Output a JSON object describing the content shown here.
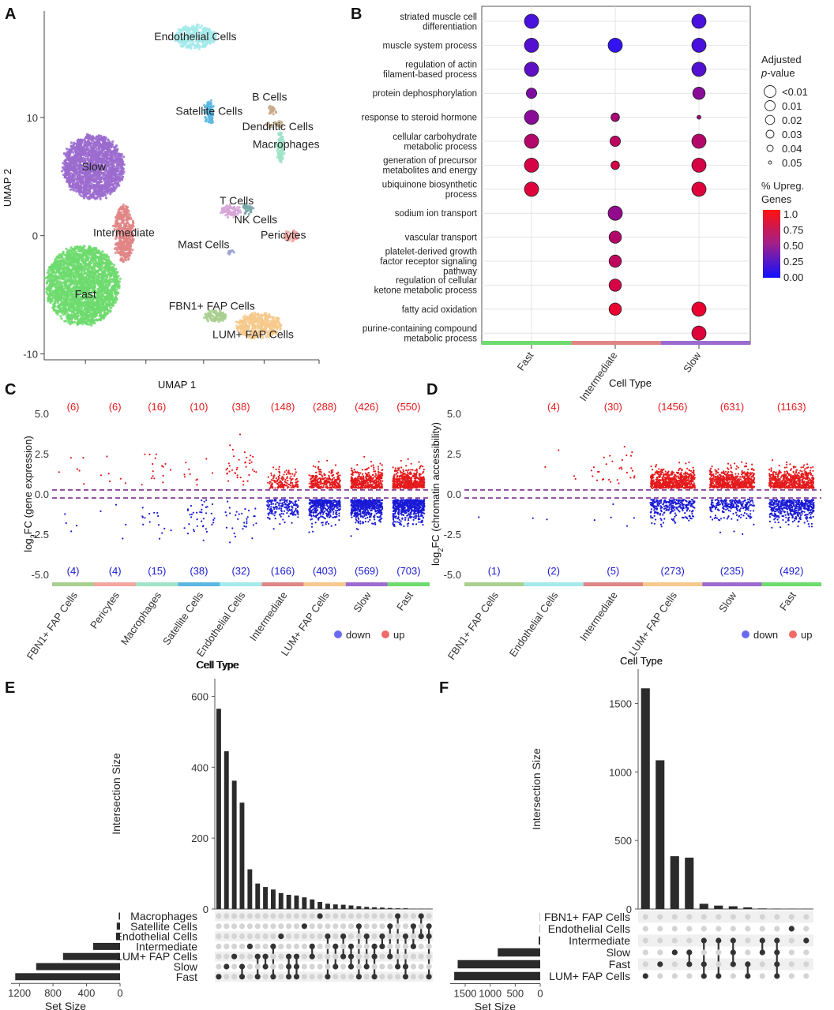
{
  "panels": {
    "a": "A",
    "b": "B",
    "c": "C",
    "d": "D",
    "e": "E",
    "f": "F"
  },
  "colors": {
    "up": "#e41a1c",
    "down": "#1a1ad6",
    "dashed": "#7b2d8e",
    "bar": "#2b2b2b",
    "celltypes": {
      "FBN1+ FAP Cells": "#a8cf8e",
      "Pericytes": "#f4a6a1",
      "Macrophages": "#9fe3c8",
      "Satellite Cells": "#5ab7e2",
      "Endothelial Cells": "#a3eaea",
      "Intermediate": "#e08585",
      "LUM+ FAP Cells": "#f6c98b",
      "Slow": "#9b6bcf",
      "Fast": "#6ddb6d",
      "B Cells": "#c9a88c",
      "Dendritic Cells": "#c5b28f",
      "T Cells": "#d6a5d6",
      "NK Cells": "#7aa8a8",
      "Mast Cells": "#9aa0cf"
    }
  },
  "chart_data": [
    {
      "id": "A",
      "type": "scatter",
      "xlabel": "UMAP 1",
      "ylabel": "UMAP 2",
      "yticks": [
        10,
        0,
        -10
      ],
      "ylim": [
        -10.5,
        19
      ],
      "clusters": [
        {
          "name": "Endothelial Cells",
          "x": 0.55,
          "y": 16.8
        },
        {
          "name": "B Cells",
          "x": 0.82,
          "y": 11.7
        },
        {
          "name": "Satellite Cells",
          "x": 0.6,
          "y": 10.5
        },
        {
          "name": "Dendritic Cells",
          "x": 0.85,
          "y": 9.2
        },
        {
          "name": "Macrophages",
          "x": 0.88,
          "y": 7.7
        },
        {
          "name": "Slow",
          "x": 0.18,
          "y": 5.8
        },
        {
          "name": "T Cells",
          "x": 0.7,
          "y": 2.9
        },
        {
          "name": "NK Cells",
          "x": 0.77,
          "y": 1.3
        },
        {
          "name": "Intermediate",
          "x": 0.29,
          "y": 0.2
        },
        {
          "name": "Pericytes",
          "x": 0.87,
          "y": 0.0
        },
        {
          "name": "Mast Cells",
          "x": 0.58,
          "y": -0.8
        },
        {
          "name": "Fast",
          "x": 0.15,
          "y": -5.0
        },
        {
          "name": "FBN1+ FAP Cells",
          "x": 0.61,
          "y": -6.0
        },
        {
          "name": "LUM+ FAP Cells",
          "x": 0.76,
          "y": -8.4
        }
      ]
    },
    {
      "id": "B",
      "type": "scatter",
      "xlabel": "Cell Type",
      "x_categories": [
        "Fast",
        "Intermediate",
        "Slow"
      ],
      "terms": [
        "striated muscle cell differentiation",
        "muscle system process",
        "regulation of actin filament-based process",
        "protein dephosphorylation",
        "response to steroid hormone",
        "cellular carbohydrate metabolic process",
        "generation of precursor metabolites and energy",
        "ubiquinone biosynthetic process",
        "sodium ion transport",
        "vascular transport",
        "platelet-derived growth factor receptor signaling pathway",
        "regulation of cellular ketone metabolic process",
        "fatty acid oxidation",
        "purine-containing compound metabolic process"
      ],
      "points": [
        {
          "term": "striated muscle cell differentiation",
          "x": "Fast",
          "pct": 0.15,
          "padj": 0.0
        },
        {
          "term": "striated muscle cell differentiation",
          "x": "Slow",
          "pct": 0.15,
          "padj": 0.0
        },
        {
          "term": "muscle system process",
          "x": "Fast",
          "pct": 0.2,
          "padj": 0.0
        },
        {
          "term": "muscle system process",
          "x": "Intermediate",
          "pct": 0.05,
          "padj": 0.0
        },
        {
          "term": "muscle system process",
          "x": "Slow",
          "pct": 0.15,
          "padj": 0.0
        },
        {
          "term": "regulation of actin filament-based process",
          "x": "Fast",
          "pct": 0.25,
          "padj": 0.0
        },
        {
          "term": "regulation of actin filament-based process",
          "x": "Slow",
          "pct": 0.2,
          "padj": 0.0
        },
        {
          "term": "protein dephosphorylation",
          "x": "Fast",
          "pct": 0.4,
          "padj": 0.02
        },
        {
          "term": "protein dephosphorylation",
          "x": "Slow",
          "pct": 0.45,
          "padj": 0.01
        },
        {
          "term": "response to steroid hormone",
          "x": "Fast",
          "pct": 0.45,
          "padj": 0.0
        },
        {
          "term": "response to steroid hormone",
          "x": "Intermediate",
          "pct": 0.6,
          "padj": 0.03
        },
        {
          "term": "response to steroid hormone",
          "x": "Slow",
          "pct": 0.55,
          "padj": 0.05
        },
        {
          "term": "cellular carbohydrate metabolic process",
          "x": "Fast",
          "pct": 0.65,
          "padj": 0.0
        },
        {
          "term": "cellular carbohydrate metabolic process",
          "x": "Intermediate",
          "pct": 0.7,
          "padj": 0.02
        },
        {
          "term": "cellular carbohydrate metabolic process",
          "x": "Slow",
          "pct": 0.65,
          "padj": 0.0
        },
        {
          "term": "generation of precursor metabolites and energy",
          "x": "Fast",
          "pct": 0.8,
          "padj": 0.0
        },
        {
          "term": "generation of precursor metabolites and energy",
          "x": "Intermediate",
          "pct": 0.8,
          "padj": 0.03
        },
        {
          "term": "generation of precursor metabolites and energy",
          "x": "Slow",
          "pct": 0.8,
          "padj": 0.0
        },
        {
          "term": "ubiquinone biosynthetic process",
          "x": "Fast",
          "pct": 0.85,
          "padj": 0.0
        },
        {
          "term": "ubiquinone biosynthetic process",
          "x": "Slow",
          "pct": 0.85,
          "padj": 0.0
        },
        {
          "term": "sodium ion transport",
          "x": "Intermediate",
          "pct": 0.5,
          "padj": 0.0
        },
        {
          "term": "vascular transport",
          "x": "Intermediate",
          "pct": 0.65,
          "padj": 0.01
        },
        {
          "term": "platelet-derived growth factor receptor signaling pathway",
          "x": "Intermediate",
          "pct": 0.7,
          "padj": 0.01
        },
        {
          "term": "regulation of cellular ketone metabolic process",
          "x": "Intermediate",
          "pct": 0.8,
          "padj": 0.01
        },
        {
          "term": "fatty acid oxidation",
          "x": "Intermediate",
          "pct": 0.9,
          "padj": 0.01
        },
        {
          "term": "fatty acid oxidation",
          "x": "Slow",
          "pct": 0.9,
          "padj": 0.0
        },
        {
          "term": "purine-containing compound metabolic process",
          "x": "Slow",
          "pct": 0.85,
          "padj": 0.0
        }
      ],
      "legend_size": {
        "title": "Adjusted p-value",
        "labels": [
          "<0.01",
          "0.01",
          "0.02",
          "0.03",
          "0.04",
          "0.05"
        ]
      },
      "legend_color": {
        "title": "% Upreg. Genes",
        "labels": [
          "1.0",
          "0.75",
          "0.50",
          "0.25",
          "0.00"
        ]
      }
    },
    {
      "id": "C",
      "type": "scatter",
      "xlabel": "Cell Type",
      "ylabel": "log2FC (gene expression)",
      "yticks": [
        5.0,
        2.5,
        0.0,
        -2.5,
        -5.0
      ],
      "ytick_labels": [
        "5.0",
        "2.5",
        "0.0",
        "-2.5",
        "-5.0"
      ],
      "ylim": [
        -5.4,
        5.4
      ],
      "thresholds": [
        0.25,
        -0.25
      ],
      "categories": [
        "FBN1+ FAP Cells",
        "Pericytes",
        "Macrophages",
        "Satellite Cells",
        "Endothelial Cells",
        "Intermediate",
        "LUM+ FAP Cells",
        "Slow",
        "Fast"
      ],
      "up_counts": [
        "(6)",
        "(6)",
        "(16)",
        "(10)",
        "(38)",
        "(148)",
        "(288)",
        "(426)",
        "(550)"
      ],
      "down_counts": [
        "(4)",
        "(4)",
        "(15)",
        "(38)",
        "(32)",
        "(166)",
        "(403)",
        "(569)",
        "(703)"
      ],
      "up_n": [
        6,
        6,
        16,
        10,
        38,
        148,
        288,
        426,
        550
      ],
      "down_n": [
        4,
        4,
        15,
        38,
        32,
        166,
        403,
        569,
        703
      ],
      "legend": [
        "down",
        "up"
      ]
    },
    {
      "id": "D",
      "type": "scatter",
      "xlabel": "Cell Type",
      "ylabel": "log2FC (chromatin accessibility)",
      "yticks": [
        5.0,
        2.5,
        0.0,
        -2.5,
        -5.0
      ],
      "ytick_labels": [
        "5.0",
        "2.5",
        "0.0",
        "-2.5",
        "-5.0"
      ],
      "ylim": [
        -5.4,
        5.4
      ],
      "thresholds": [
        0.25,
        -0.25
      ],
      "categories": [
        "FBN1+ FAP Cells",
        "Endothelial Cells",
        "Intermediate",
        "LUM+ FAP Cells",
        "Slow",
        "Fast"
      ],
      "up_counts": [
        "",
        "(4)",
        "(30)",
        "(1456)",
        "(631)",
        "(1163)"
      ],
      "down_counts": [
        "(1)",
        "(2)",
        "(5)",
        "(273)",
        "(235)",
        "(492)"
      ],
      "up_n": [
        0,
        4,
        30,
        1456,
        631,
        1163
      ],
      "down_n": [
        1,
        2,
        5,
        273,
        235,
        492
      ],
      "legend": [
        "down",
        "up"
      ]
    },
    {
      "id": "E",
      "type": "bar",
      "title": "Cell Type",
      "ylabel": "Intersection Size",
      "yticks": [
        0,
        200,
        400,
        600
      ],
      "ylim": [
        0,
        650
      ],
      "values": [
        565,
        445,
        362,
        300,
        112,
        72,
        62,
        55,
        45,
        40,
        38,
        33,
        27,
        20,
        15,
        13,
        12,
        10,
        8,
        6,
        5,
        4,
        3,
        2,
        2,
        1,
        1,
        1
      ],
      "sets": [
        "Macrophages",
        "Satellite Cells",
        "Endothelial Cells",
        "Intermediate",
        "LUM+ FAP Cells",
        "Slow",
        "Fast"
      ],
      "set_sizes": [
        15,
        40,
        40,
        320,
        680,
        1000,
        1250
      ],
      "set_xlabel": "Set Size",
      "set_xticks": [
        1200,
        800,
        400,
        0
      ],
      "set_xlim": [
        0,
        1300
      ],
      "membership": [
        [
          6
        ],
        [
          5
        ],
        [
          4
        ],
        [
          5,
          6
        ],
        [
          3
        ],
        [
          4,
          6
        ],
        [
          4,
          5
        ],
        [
          3,
          6
        ],
        [
          2
        ],
        [
          4,
          5,
          6
        ],
        [
          5,
          6,
          4
        ],
        [
          1
        ],
        [
          3,
          4
        ],
        [
          0
        ],
        [
          2,
          6
        ],
        [
          3,
          5
        ],
        [
          2,
          4
        ],
        [
          3,
          4,
          5
        ],
        [
          1,
          6
        ],
        [
          2,
          5
        ],
        [
          3,
          4,
          6
        ],
        [
          2,
          3
        ],
        [
          1,
          4
        ],
        [
          0,
          5
        ],
        [
          2,
          5,
          6
        ],
        [
          1,
          3
        ],
        [
          0,
          2
        ],
        [
          1,
          2,
          6
        ]
      ]
    },
    {
      "id": "F",
      "type": "bar",
      "title": "Cell Type",
      "ylabel": "Intersection Size",
      "yticks": [
        0,
        500,
        1000,
        1500
      ],
      "ylim": [
        0,
        1750
      ],
      "values": [
        1610,
        1085,
        385,
        375,
        38,
        25,
        20,
        12,
        4,
        3,
        2,
        2
      ],
      "sets": [
        "FBN1+ FAP Cells",
        "Endothelial Cells",
        "Intermediate",
        "Slow",
        "Fast",
        "LUM+ FAP Cells"
      ],
      "set_sizes": [
        5,
        5,
        30,
        850,
        1650,
        1720
      ],
      "set_xlabel": "Set Size",
      "set_xticks": [
        1500,
        1000,
        500,
        0
      ],
      "set_xlim": [
        0,
        1800
      ],
      "membership": [
        [
          5
        ],
        [
          4
        ],
        [
          3
        ],
        [
          3,
          4
        ],
        [
          2,
          4,
          5
        ],
        [
          2,
          5
        ],
        [
          2,
          3,
          4
        ],
        [
          4,
          5
        ],
        [
          2,
          3
        ],
        [
          2,
          3,
          4,
          5
        ],
        [
          1
        ],
        [
          2
        ]
      ]
    }
  ]
}
